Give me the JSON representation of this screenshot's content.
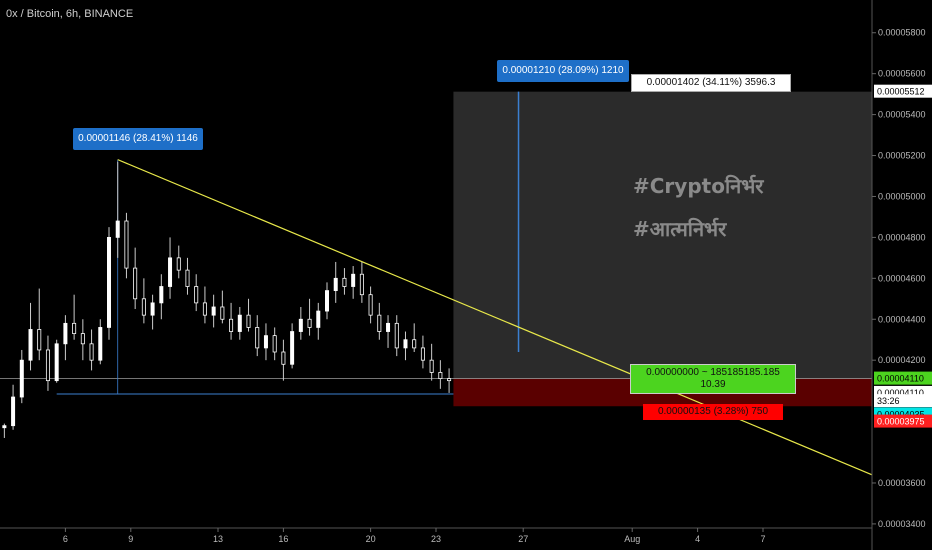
{
  "header": {
    "ticker": "0x / Bitcoin, 6h, BINANCE"
  },
  "chart_data": {
    "type": "candlestick",
    "title": "0x / Bitcoin, 6h, BINANCE",
    "y_ticks": [
      "0.00005800",
      "0.00005600",
      "0.00005400",
      "0.00005200",
      "0.00005000",
      "0.00004800",
      "0.00004600",
      "0.00004400",
      "0.00004200",
      "0.00003600",
      "0.00003400"
    ],
    "y_tick_values": [
      5800,
      5600,
      5400,
      5200,
      5000,
      4800,
      4600,
      4400,
      4200,
      3600,
      3400
    ],
    "x_ticks": [
      "6",
      "9",
      "13",
      "16",
      "20",
      "23",
      "27",
      "Aug",
      "4",
      "7"
    ],
    "x_tick_values": [
      6,
      9,
      13,
      16,
      20,
      23,
      27,
      32,
      35,
      38
    ],
    "x_range": [
      3,
      43
    ],
    "ylim": [
      3380,
      5960
    ],
    "candles": [
      [
        3.2,
        3870,
        3890,
        3820,
        3880
      ],
      [
        3.6,
        3880,
        4080,
        3860,
        4020
      ],
      [
        4.0,
        4020,
        4250,
        3990,
        4200
      ],
      [
        4.4,
        4200,
        4480,
        4150,
        4350
      ],
      [
        4.8,
        4350,
        4550,
        4200,
        4250
      ],
      [
        5.2,
        4250,
        4320,
        4050,
        4100
      ],
      [
        5.6,
        4100,
        4300,
        4090,
        4280
      ],
      [
        6.0,
        4280,
        4420,
        4200,
        4380
      ],
      [
        6.4,
        4380,
        4520,
        4300,
        4330
      ],
      [
        6.8,
        4330,
        4400,
        4200,
        4280
      ],
      [
        7.2,
        4280,
        4350,
        4150,
        4200
      ],
      [
        7.6,
        4200,
        4400,
        4180,
        4360
      ],
      [
        8.0,
        4360,
        4850,
        4300,
        4800
      ],
      [
        8.4,
        4800,
        5170,
        4700,
        4880
      ],
      [
        8.8,
        4880,
        4920,
        4600,
        4650
      ],
      [
        9.2,
        4650,
        4750,
        4450,
        4500
      ],
      [
        9.6,
        4500,
        4600,
        4380,
        4420
      ],
      [
        10.0,
        4420,
        4520,
        4350,
        4480
      ],
      [
        10.4,
        4480,
        4620,
        4400,
        4560
      ],
      [
        10.8,
        4560,
        4800,
        4500,
        4700
      ],
      [
        11.2,
        4700,
        4760,
        4600,
        4640
      ],
      [
        11.6,
        4640,
        4700,
        4520,
        4560
      ],
      [
        12.0,
        4560,
        4620,
        4440,
        4480
      ],
      [
        12.4,
        4480,
        4560,
        4380,
        4420
      ],
      [
        12.8,
        4420,
        4520,
        4360,
        4460
      ],
      [
        13.2,
        4460,
        4540,
        4380,
        4400
      ],
      [
        13.6,
        4400,
        4480,
        4300,
        4340
      ],
      [
        14.0,
        4340,
        4460,
        4300,
        4420
      ],
      [
        14.4,
        4420,
        4500,
        4340,
        4360
      ],
      [
        14.8,
        4360,
        4420,
        4220,
        4260
      ],
      [
        15.2,
        4260,
        4380,
        4200,
        4320
      ],
      [
        15.6,
        4320,
        4360,
        4200,
        4240
      ],
      [
        16.0,
        4240,
        4300,
        4100,
        4180
      ],
      [
        16.4,
        4180,
        4380,
        4160,
        4340
      ],
      [
        16.8,
        4340,
        4460,
        4300,
        4400
      ],
      [
        17.2,
        4400,
        4500,
        4320,
        4360
      ],
      [
        17.6,
        4360,
        4480,
        4300,
        4440
      ],
      [
        18.0,
        4440,
        4580,
        4400,
        4540
      ],
      [
        18.4,
        4540,
        4680,
        4480,
        4600
      ],
      [
        18.8,
        4600,
        4650,
        4520,
        4560
      ],
      [
        19.2,
        4560,
        4660,
        4500,
        4620
      ],
      [
        19.6,
        4620,
        4680,
        4480,
        4520
      ],
      [
        20.0,
        4520,
        4560,
        4380,
        4420
      ],
      [
        20.4,
        4420,
        4480,
        4300,
        4340
      ],
      [
        20.8,
        4340,
        4420,
        4260,
        4380
      ],
      [
        21.2,
        4380,
        4420,
        4220,
        4260
      ],
      [
        21.6,
        4260,
        4340,
        4200,
        4300
      ],
      [
        22.0,
        4300,
        4380,
        4240,
        4260
      ],
      [
        22.4,
        4260,
        4320,
        4160,
        4200
      ],
      [
        22.8,
        4200,
        4280,
        4100,
        4140
      ],
      [
        23.2,
        4140,
        4200,
        4060,
        4110
      ],
      [
        23.6,
        4110,
        4160,
        4040,
        4100
      ]
    ],
    "annotations": {
      "pattern_label": "0.00001146 (28.41%) 1146",
      "target_label": "0.00001210 (28.09%) 1210",
      "profit_label": "0.00001402 (34.11%) 3596.3",
      "entry_label_line1": "0.00000000 ~ 185185185.185",
      "entry_label_line2": "10.39",
      "stop_label": "0.00000135 (3.28%) 750",
      "watermark_1": "#Cryptoनिर्भर",
      "watermark_2": "#आत्मनिर्भर"
    },
    "levels": {
      "support": 4035,
      "pattern_top": 5180,
      "entry": 4110,
      "target": 5512,
      "stop": 3975
    },
    "trendline": {
      "x": [
        8.4,
        43
      ],
      "y": [
        5180,
        3640
      ]
    },
    "price_badges": [
      {
        "label": "0.00005512",
        "value": 5512,
        "bg": "#ffffff",
        "fg": "#000000"
      },
      {
        "label": "0.00004110",
        "value": 4110,
        "bg": "#4cd41f",
        "fg": "#000000"
      },
      {
        "label": "0.00004110",
        "value": 4040,
        "bg": "#ffffff",
        "fg": "#000000"
      },
      {
        "label": "33:26",
        "value": 4000,
        "bg": "#ffffff",
        "fg": "#000000"
      },
      {
        "label": "0.00004035",
        "value": 3935,
        "bg": "#00e5e5",
        "fg": "#000000"
      },
      {
        "label": "0.00003975",
        "value": 3900,
        "bg": "#ff2020",
        "fg": "#ffffff"
      }
    ],
    "colors": {
      "up": "#ffffff",
      "down": "#000000",
      "wick": "#cccccc",
      "trend": "#e8e84a",
      "target_box": "#2b2b2b",
      "stop_box": "#5a0000"
    }
  }
}
